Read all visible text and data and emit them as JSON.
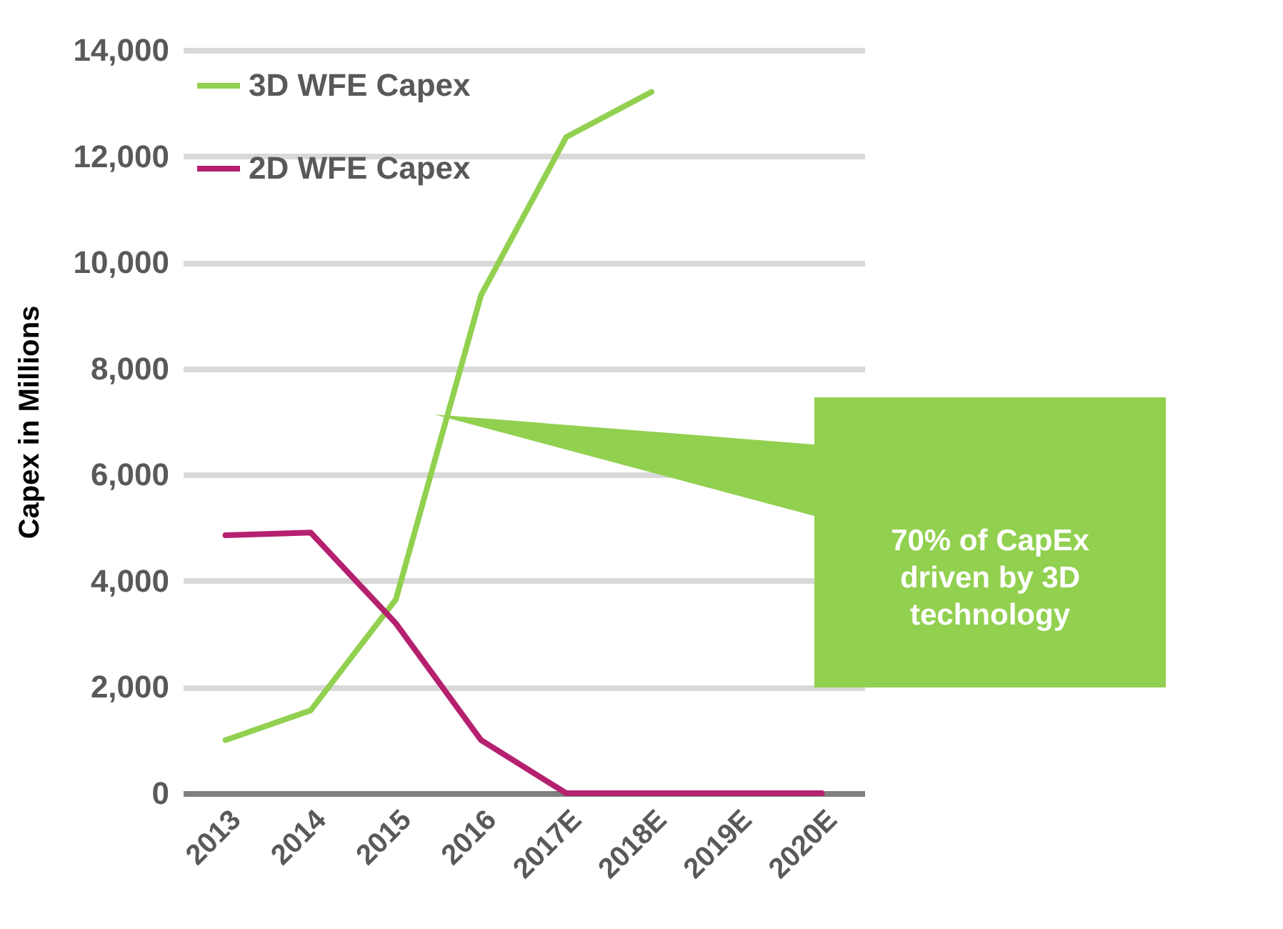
{
  "chart_data": {
    "type": "line",
    "ylabel": "Capex in Millions",
    "categories": [
      "2013",
      "2014",
      "2015",
      "2016",
      "2017E",
      "2018E",
      "2019E",
      "2020E"
    ],
    "series": [
      {
        "name": "3D WFE Capex",
        "color": "#92d050",
        "values": [
          1000,
          1560,
          3650,
          9380,
          12360,
          13210,
          null,
          null
        ]
      },
      {
        "name": "2D WFE Capex",
        "color": "#b5206f",
        "values": [
          4860,
          4910,
          3200,
          1000,
          0,
          0,
          0,
          0
        ]
      }
    ],
    "ylim": [
      0,
      14000
    ],
    "yticks": [
      0,
      {
        "value": 2000,
        "label": "2,000"
      },
      {
        "value": 4000,
        "label": "4,000"
      },
      {
        "value": 6000,
        "label": "6,000"
      },
      {
        "value": 8000,
        "label": "8,000"
      },
      {
        "value": 10000,
        "label": "10,000"
      },
      {
        "value": 12000,
        "label": "12,000"
      },
      {
        "value": 14000,
        "label": "14,000"
      }
    ],
    "grid": "y",
    "legend": "top left",
    "annotations": [
      "70% of CapEx driven by 3D technology"
    ]
  }
}
